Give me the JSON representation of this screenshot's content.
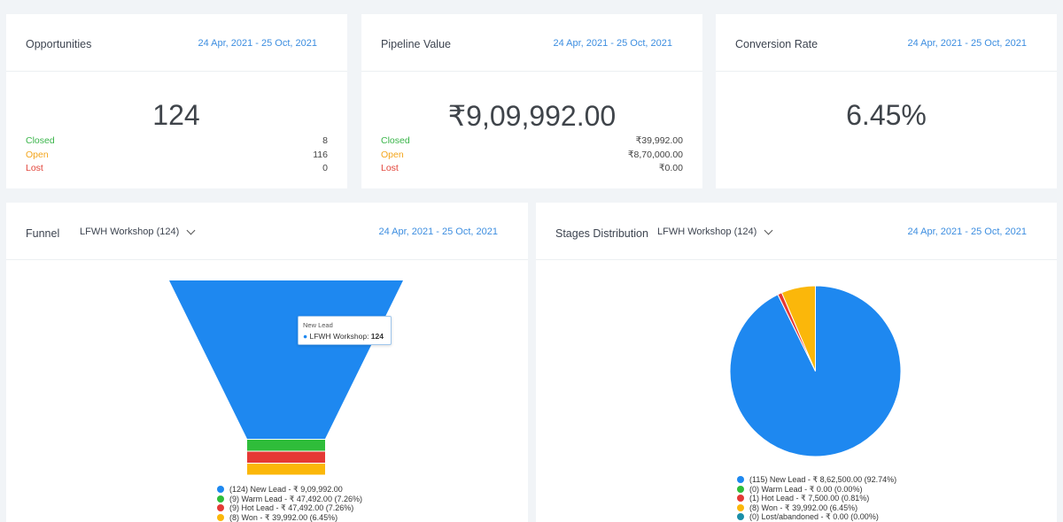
{
  "colors": {
    "accent": "#3d8ee0",
    "blue": "#1e88f0",
    "green": "#2fbd3a",
    "red": "#e53935",
    "yellow": "#fbb70a",
    "teal": "#1b8fa8"
  },
  "opportunities": {
    "title": "Opportunities",
    "date_range": "24 Apr, 2021 - 25 Oct, 2021",
    "value": "124",
    "rows": [
      {
        "label": "Closed",
        "value": "8"
      },
      {
        "label": "Open",
        "value": "116"
      },
      {
        "label": "Lost",
        "value": "0"
      }
    ]
  },
  "pipeline": {
    "title": "Pipeline Value",
    "date_range": "24 Apr, 2021 - 25 Oct, 2021",
    "value": "₹9,09,992.00",
    "rows": [
      {
        "label": "Closed",
        "value": "₹39,992.00"
      },
      {
        "label": "Open",
        "value": "₹8,70,000.00"
      },
      {
        "label": "Lost",
        "value": "₹0.00"
      }
    ]
  },
  "conversion": {
    "title": "Conversion Rate",
    "date_range": "24 Apr, 2021 - 25 Oct, 2021",
    "value": "6.45%"
  },
  "funnel": {
    "title": "Funnel",
    "pipeline_select": "LFWH Workshop (124)",
    "date_range": "24 Apr, 2021 - 25 Oct, 2021",
    "tooltip": {
      "header": "New Lead",
      "series": "LFWH Workshop: ",
      "value": "124"
    },
    "legend": [
      "(124) New Lead - ₹ 9,09,992.00",
      "(9) Warm Lead - ₹ 47,492.00 (7.26%)",
      "(9) Hot Lead - ₹ 47,492.00 (7.26%)",
      "(8) Won - ₹ 39,992.00 (6.45%)"
    ]
  },
  "stages": {
    "title": "Stages Distribution",
    "pipeline_select": "LFWH Workshop (124)",
    "date_range": "24 Apr, 2021 - 25 Oct, 2021",
    "legend": [
      "(115) New Lead - ₹ 8,62,500.00 (92.74%)",
      "(0) Warm Lead - ₹ 0.00 (0.00%)",
      "(1) Hot Lead - ₹ 7,500.00 (0.81%)",
      "(8) Won - ₹ 39,992.00 (6.45%)",
      "(0) Lost/abandoned - ₹ 0.00 (0.00%)"
    ]
  },
  "chart_data": [
    {
      "type": "funnel",
      "categories": [
        "New Lead",
        "Warm Lead",
        "Hot Lead",
        "Won"
      ],
      "values": [
        124,
        9,
        9,
        8
      ],
      "colors": [
        "#1e88f0",
        "#2fbd3a",
        "#e53935",
        "#fbb70a"
      ]
    },
    {
      "type": "pie",
      "categories": [
        "New Lead",
        "Warm Lead",
        "Hot Lead",
        "Won",
        "Lost/abandoned"
      ],
      "values": [
        92.74,
        0.0,
        0.81,
        6.45,
        0.0
      ],
      "colors": [
        "#1e88f0",
        "#2fbd3a",
        "#e53935",
        "#fbb70a",
        "#1b8fa8"
      ]
    }
  ]
}
